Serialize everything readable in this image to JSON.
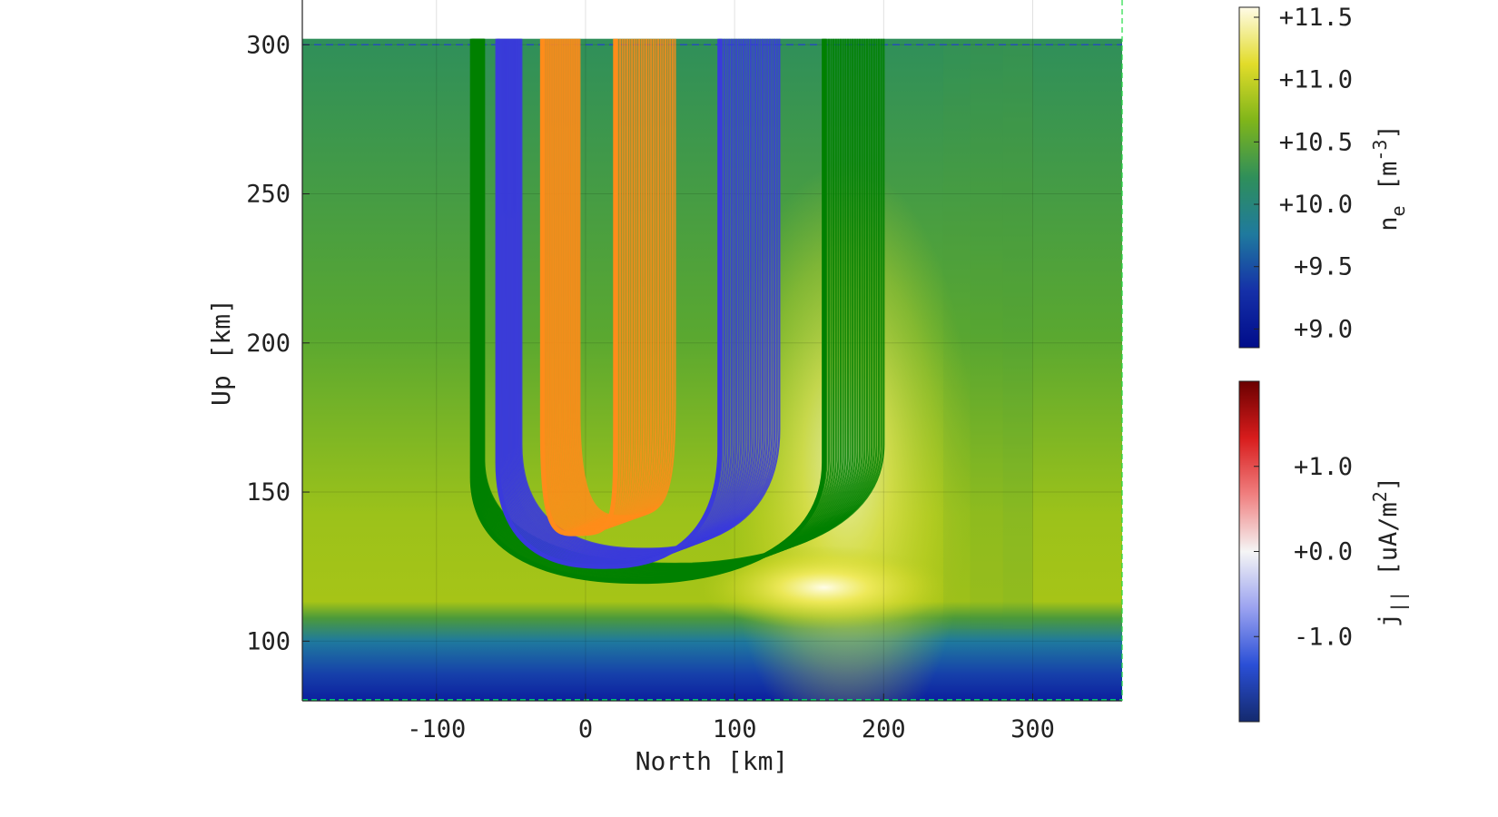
{
  "chart_data": [
    {
      "type": "heatmap",
      "title": "",
      "xlabel": "North [km]",
      "ylabel": "Up [km]",
      "xlim": [
        -190,
        360
      ],
      "ylim": [
        80,
        315
      ],
      "xticks": [
        -100,
        0,
        100,
        200,
        300
      ],
      "yticks": [
        100,
        150,
        200,
        250,
        300
      ],
      "xtick_labels": [
        "-100",
        "0",
        "100",
        "200",
        "300"
      ],
      "ytick_labels": [
        "100",
        "150",
        "200",
        "250",
        "300"
      ],
      "grid": true,
      "data_top_km": 302,
      "reference_line_km": 300,
      "colorscale_log10": [
        {
          "v": 9.0,
          "color": "#1530a8"
        },
        {
          "v": 9.5,
          "color": "#1f7a9e"
        },
        {
          "v": 10.0,
          "color": "#2f8f5a"
        },
        {
          "v": 10.5,
          "color": "#7fb51a"
        },
        {
          "v": 11.0,
          "color": "#e2dc2a"
        },
        {
          "v": 11.5,
          "color": "#fffbe6"
        }
      ],
      "field_line_bundles": [
        {
          "color": "#008000",
          "left_km": [
            -76,
            -68
          ],
          "right_km": [
            160,
            200
          ],
          "bottom_km": 120,
          "top_km": 302
        },
        {
          "color": "#3a3adc",
          "left_km": [
            -59,
            -43
          ],
          "right_km": [
            90,
            130
          ],
          "bottom_km": 125,
          "top_km": 302
        },
        {
          "color": "#ff8c1a",
          "left_km": [
            -29,
            -4
          ],
          "right_km": [
            20,
            60
          ],
          "bottom_km": 136,
          "top_km": 302
        }
      ]
    },
    {
      "type": "colorbar",
      "label_base": "n",
      "label_sub": "e",
      "label_unit_open": "[m",
      "label_unit_sup": "-3",
      "label_unit_close": "]",
      "range": [
        8.85,
        11.58
      ],
      "ticks": [
        9.0,
        9.5,
        10.0,
        10.5,
        11.0,
        11.5
      ],
      "tick_labels": [
        "+9.0",
        "+9.5",
        "+10.0",
        "+10.5",
        "+11.0",
        "+11.5"
      ],
      "colors": [
        "#000c8a",
        "#1530a8",
        "#1f7a9e",
        "#2f8f5a",
        "#7fb51a",
        "#e2dc2a",
        "#fffbe6"
      ]
    },
    {
      "type": "colorbar",
      "label_base": "j",
      "label_sub": "||",
      "label_unit_open": "[uA/m",
      "label_unit_sup": "2",
      "label_unit_close": "]",
      "range": [
        -2.0,
        2.0
      ],
      "ticks": [
        -1.0,
        0.0,
        1.0
      ],
      "tick_labels": [
        "-1.0",
        "+0.0",
        "+1.0"
      ],
      "colors": [
        "#142a6e",
        "#2a4fd6",
        "#9aa2f0",
        "#f5f5f5",
        "#f08080",
        "#d81c1c",
        "#6a0000"
      ]
    }
  ]
}
